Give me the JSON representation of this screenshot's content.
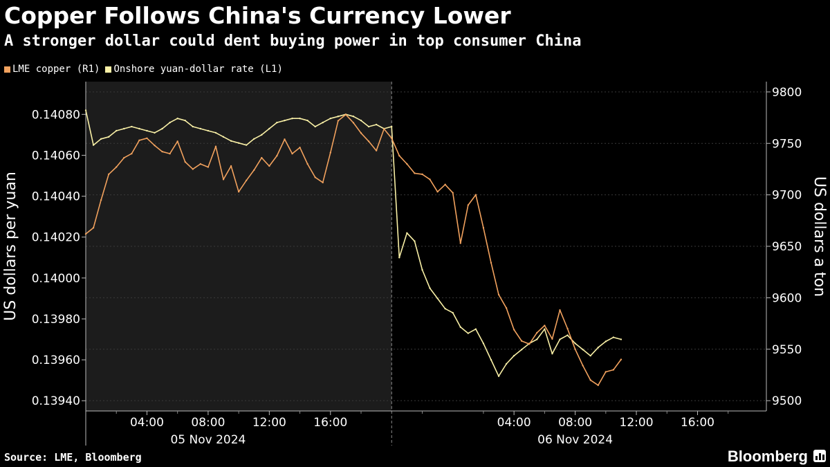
{
  "header": {
    "title": "Copper Follows China's Currency Lower",
    "subtitle": "A stronger dollar could dent buying power in top consumer China"
  },
  "legend": [
    {
      "label": "LME copper (R1)",
      "color": "#f2a25e"
    },
    {
      "label": "Onshore yuan-dollar rate (L1)",
      "color": "#f9f0a6"
    }
  ],
  "footer": {
    "source": "Source: LME, Bloomberg",
    "brand": "Bloomberg"
  },
  "chart_data": {
    "type": "line",
    "x_axis": {
      "tick_labels": [
        "04:00",
        "08:00",
        "12:00",
        "16:00",
        "04:00",
        "08:00",
        "12:00",
        "16:00"
      ],
      "tick_hours": [
        4,
        8,
        12,
        16,
        28,
        32,
        36,
        40
      ],
      "date_labels": [
        "05 Nov 2024",
        "06 Nov 2024"
      ],
      "date_label_hours": [
        8,
        32
      ],
      "day_boundary_hour": 20,
      "range_hours": [
        0,
        44.5
      ],
      "note_shaded": "shaded background 00:00-20:00 on 05 Nov 2024"
    },
    "left_axis": {
      "label": "US dollars per yuan",
      "ticks": [
        "0.14080",
        "0.14060",
        "0.14040",
        "0.14020",
        "0.14000",
        "0.13980",
        "0.13960",
        "0.13940"
      ],
      "range": [
        0.13935,
        0.14096
      ]
    },
    "right_axis": {
      "label": "US dollars a ton",
      "ticks": [
        "9800",
        "9750",
        "9700",
        "9650",
        "9600",
        "9550",
        "9500"
      ],
      "range": [
        9490,
        9810
      ],
      "gridlines": [
        9500,
        9550,
        9600,
        9650,
        9700,
        9750,
        9800
      ]
    },
    "series": [
      {
        "name": "LME copper (R1)",
        "axis": "right",
        "color": "#f2a25e",
        "x_hours": [
          0,
          0.5,
          1,
          1.5,
          2,
          2.5,
          3,
          3.5,
          4,
          4.5,
          5,
          5.5,
          6,
          6.5,
          7,
          7.5,
          8,
          8.5,
          9,
          9.5,
          10,
          10.5,
          11,
          11.5,
          12,
          12.5,
          13,
          13.5,
          14,
          14.5,
          15,
          15.5,
          16,
          16.5,
          17,
          17.5,
          18,
          18.5,
          19,
          19.5,
          20,
          20.5,
          21,
          21.5,
          22,
          22.5,
          23,
          23.5,
          24,
          24.5,
          25,
          25.5,
          26,
          26.5,
          27,
          27.5,
          28,
          28.5,
          29,
          29.5,
          30,
          30.5,
          31,
          31.5,
          32,
          32.5,
          33,
          33.5,
          34,
          34.5,
          35
        ],
        "values": [
          9662,
          9668,
          9695,
          9720,
          9727,
          9736,
          9740,
          9753,
          9755,
          9748,
          9742,
          9740,
          9752,
          9732,
          9725,
          9730,
          9727,
          9747,
          9715,
          9728,
          9703,
          9714,
          9724,
          9736,
          9728,
          9738,
          9754,
          9740,
          9746,
          9730,
          9717,
          9712,
          9741,
          9772,
          9778,
          9770,
          9760,
          9752,
          9743,
          9764,
          9755,
          9738,
          9730,
          9721,
          9720,
          9715,
          9703,
          9710,
          9702,
          9653,
          9690,
          9700,
          9668,
          9634,
          9603,
          9590,
          9569,
          9558,
          9555,
          9566,
          9573,
          9560,
          9588,
          9570,
          9550,
          9534,
          9520,
          9515,
          9528,
          9530,
          9540
        ]
      },
      {
        "name": "Onshore yuan-dollar rate (L1)",
        "axis": "left",
        "color": "#f9f0a6",
        "x_hours": [
          0,
          0.5,
          1,
          1.5,
          2,
          2.5,
          3,
          3.5,
          4,
          4.5,
          5,
          5.5,
          6,
          6.5,
          7,
          7.5,
          8,
          8.5,
          9,
          9.5,
          10,
          10.5,
          11,
          11.5,
          12,
          12.5,
          13,
          13.5,
          14,
          14.5,
          15,
          15.5,
          16,
          16.5,
          17,
          17.5,
          18,
          18.5,
          19,
          19.5,
          20,
          20.5,
          21,
          21.5,
          22,
          22.5,
          23,
          23.5,
          24,
          24.5,
          25,
          25.5,
          26,
          26.5,
          27,
          27.5,
          28,
          28.5,
          29,
          29.5,
          30,
          30.5,
          31,
          31.5,
          32,
          32.5,
          33,
          33.5,
          34,
          34.5,
          35
        ],
        "values": [
          0.14082,
          0.14065,
          0.14068,
          0.14069,
          0.14072,
          0.14073,
          0.14074,
          0.14073,
          0.14072,
          0.14071,
          0.14073,
          0.14076,
          0.14078,
          0.14077,
          0.14074,
          0.14073,
          0.14072,
          0.14071,
          0.14069,
          0.14067,
          0.14066,
          0.14065,
          0.14068,
          0.1407,
          0.14073,
          0.14076,
          0.14077,
          0.14078,
          0.14078,
          0.14077,
          0.14074,
          0.14076,
          0.14078,
          0.14079,
          0.1408,
          0.14079,
          0.14077,
          0.14074,
          0.14075,
          0.14073,
          0.14074,
          0.1401,
          0.14022,
          0.14018,
          0.14004,
          0.13995,
          0.1399,
          0.13985,
          0.13983,
          0.13976,
          0.13973,
          0.13975,
          0.13968,
          0.1396,
          0.13952,
          0.13958,
          0.13962,
          0.13965,
          0.13968,
          0.1397,
          0.13975,
          0.13963,
          0.1397,
          0.13972,
          0.13968,
          0.13965,
          0.13962,
          0.13966,
          0.13969,
          0.13971,
          0.1397
        ]
      }
    ]
  }
}
